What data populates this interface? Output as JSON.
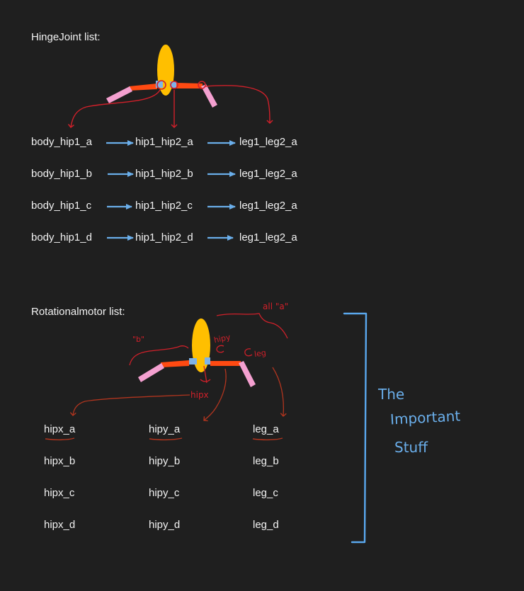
{
  "hinge": {
    "title": "HingeJoint list:",
    "rows": [
      [
        "body_hip1_a",
        "hip1_hip2_a",
        "leg1_leg2_a"
      ],
      [
        "body_hip1_b",
        "hip1_hip2_b",
        "leg1_leg2_a"
      ],
      [
        "body_hip1_c",
        "hip1_hip2_c",
        "leg1_leg2_a"
      ],
      [
        "body_hip1_d",
        "hip1_hip2_d",
        "leg1_leg2_a"
      ]
    ]
  },
  "motor": {
    "title": "Rotationalmotor list:",
    "annotations": {
      "all_a": "all \"a\"",
      "b": "\"b\"",
      "hipy": "hipy",
      "leg": "leg",
      "hipx": "hipx"
    },
    "rows": [
      [
        "hipx_a",
        "hipy_a",
        "leg_a"
      ],
      [
        "hipx_b",
        "hipy_b",
        "leg_b"
      ],
      [
        "hipx_c",
        "hipy_c",
        "leg_c"
      ],
      [
        "hipx_d",
        "hipy_d",
        "leg_d"
      ]
    ]
  },
  "side_note": [
    "The",
    "Important",
    "Stuff"
  ],
  "colors": {
    "background": "#1f1f1f",
    "text": "#f2f2f2",
    "body": "#ffbf00",
    "hip": "#ff4a12",
    "leg": "#f4a0d0",
    "joint": "#7fb3e6",
    "annotation": "#d0202a",
    "motor_annotation": "#b0351f",
    "arrow": "#6aaeea",
    "bracket": "#5aa8ee"
  }
}
